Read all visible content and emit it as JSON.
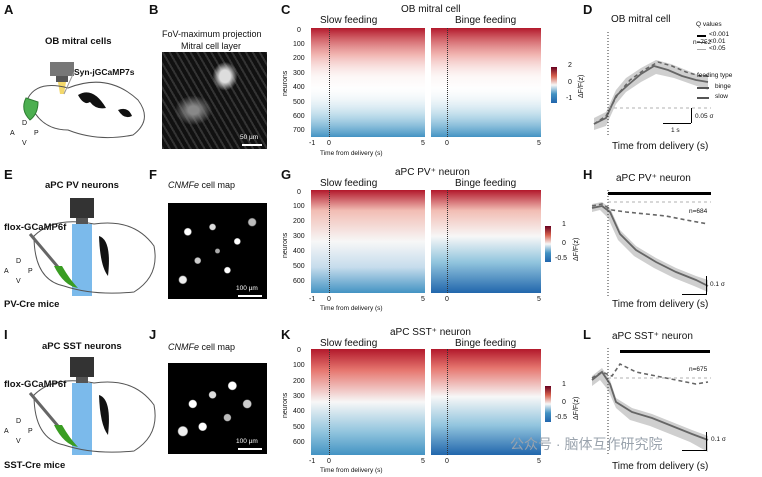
{
  "panels": {
    "A": {
      "letter": "A",
      "title": "OB mitral cells",
      "label": "Syn-jGCaMP7s"
    },
    "B": {
      "letter": "B",
      "title1": "FoV-maximum projection",
      "title2": "Mitral cell layer",
      "scale": "50 µm"
    },
    "C": {
      "letter": "C",
      "title": "OB mitral cell",
      "left": "Slow feeding",
      "right": "Binge feeding",
      "yticks": [
        "0",
        "100",
        "200",
        "300",
        "400",
        "500",
        "600",
        "700"
      ],
      "ylabel": "neurons",
      "xticks_l": [
        "-1",
        "0",
        "5"
      ],
      "xticks_r": [
        "0",
        "5"
      ],
      "xlabel": "Time from delivery (s)",
      "cbar": [
        "2",
        "0",
        "-1"
      ],
      "cbar_label": "ΔF/F(z)"
    },
    "D": {
      "letter": "D",
      "title": "OB mitral cell",
      "n": "n=752",
      "scale_t": "1 s",
      "scale_v": "0.05 σ",
      "xlabel": "Time from delivery (s)",
      "q_title": "Q values",
      "q": [
        "<0.001",
        "<0.01",
        "<0.05"
      ],
      "ft_title": "feeding type",
      "ft": [
        "binge",
        "slow"
      ]
    },
    "E": {
      "letter": "E",
      "title": "aPC PV neurons",
      "label": "flox-GCaMP6f",
      "mice": "PV-Cre mice"
    },
    "F": {
      "letter": "F",
      "title": "CNMFe cell map",
      "title_i": "CNMFe",
      "title_rest": " cell map",
      "scale": "100 µm"
    },
    "G": {
      "letter": "G",
      "title": "aPC PV⁺ neuron",
      "left": "Slow feeding",
      "right": "Binge feeding",
      "yticks": [
        "0",
        "100",
        "200",
        "300",
        "400",
        "500",
        "600"
      ],
      "ylabel": "neurons",
      "xticks_l": [
        "-1",
        "0",
        "5"
      ],
      "xticks_r": [
        "0",
        "5"
      ],
      "xlabel": "Time from delivery (s)",
      "cbar": [
        "1",
        "0",
        "-0.5"
      ],
      "cbar_label": "ΔF/F(z)"
    },
    "H": {
      "letter": "H",
      "title": "aPC PV⁺ neuron",
      "n": "n=684",
      "scale_v": "0.1 σ",
      "xlabel": "Time from delivery (s)"
    },
    "I": {
      "letter": "I",
      "title": "aPC SST neurons",
      "label": "flox-GCaMP6f",
      "mice": "SST-Cre mice"
    },
    "J": {
      "letter": "J",
      "title_i": "CNMFe",
      "title_rest": " cell map",
      "scale": "100 µm"
    },
    "K": {
      "letter": "K",
      "title": "aPC SST⁺ neuron",
      "left": "Slow feeding",
      "right": "Binge feeding",
      "yticks": [
        "0",
        "100",
        "200",
        "300",
        "400",
        "500",
        "600"
      ],
      "ylabel": "neurons",
      "xticks_l": [
        "-1",
        "0",
        "5"
      ],
      "xticks_r": [
        "0",
        "5"
      ],
      "xlabel": "Time from delivery (s)",
      "cbar": [
        "1",
        "0",
        "-0.5"
      ],
      "cbar_label": "ΔF/F(z)"
    },
    "L": {
      "letter": "L",
      "title": "aPC SST⁺ neuron",
      "n": "n=675",
      "scale_v": "0.1 σ",
      "xlabel": "Time from delivery (s)"
    }
  },
  "axes_labels": {
    "D": "D",
    "A": "A",
    "P": "P",
    "V": "V"
  },
  "watermark": "公众号 · 脑体互作研究院",
  "colors": {
    "red": "#b2182b",
    "blue": "#2166ac",
    "green": "#3a9d23",
    "beam": "#5aa9e6"
  }
}
